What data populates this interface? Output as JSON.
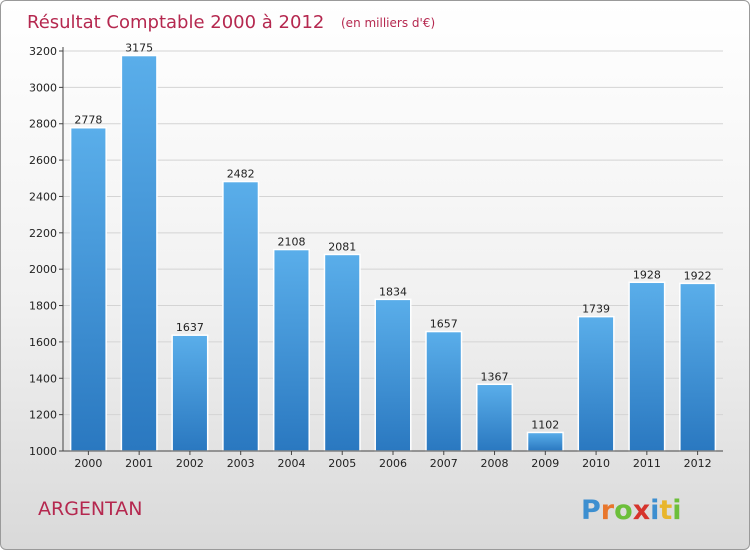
{
  "chart_data": {
    "type": "bar",
    "title": "Résultat Comptable 2000 à 2012",
    "subtitle": "(en milliers d'€)",
    "categories": [
      "2000",
      "2001",
      "2002",
      "2003",
      "2004",
      "2005",
      "2006",
      "2007",
      "2008",
      "2009",
      "2010",
      "2011",
      "2012"
    ],
    "values": [
      2778,
      3175,
      1637,
      2482,
      2108,
      2081,
      1834,
      1657,
      1367,
      1102,
      1739,
      1928,
      1922
    ],
    "ylim": [
      1000,
      3200
    ],
    "yticks": [
      1000,
      1200,
      1400,
      1600,
      1800,
      2000,
      2200,
      2400,
      2600,
      2800,
      3000,
      3200
    ],
    "grid": true,
    "bar_color": "#3a8fd6",
    "xlabel": "",
    "ylabel": ""
  },
  "place_name": "ARGENTAN",
  "brand": {
    "letters": [
      "P",
      "r",
      "o",
      "x",
      "i",
      "t",
      "i"
    ],
    "colors": [
      "#3d8fd0",
      "#e8762c",
      "#6cbf3a",
      "#d6342d",
      "#3d8fd0",
      "#e8b62c",
      "#6cbf3a"
    ]
  }
}
